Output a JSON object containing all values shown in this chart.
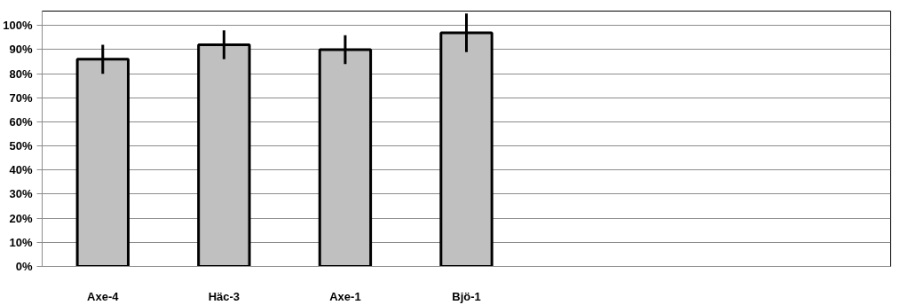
{
  "chart_data": {
    "type": "bar",
    "categories": [
      "Axe-4",
      "Häc-3",
      "Axe-1",
      "Bjö-1",
      null,
      null,
      null
    ],
    "values": [
      86,
      92,
      90,
      97,
      null,
      null,
      null
    ],
    "errors": [
      6,
      6,
      6,
      8,
      null,
      null,
      null
    ],
    "color": "#c0c0c0",
    "ylim": [
      0,
      106
    ],
    "yticks": [
      {
        "value": 0,
        "label": "0%"
      },
      {
        "value": 10,
        "label": "10%"
      },
      {
        "value": 20,
        "label": "20%"
      },
      {
        "value": 30,
        "label": "30%"
      },
      {
        "value": 40,
        "label": "40%"
      },
      {
        "value": 50,
        "label": "50%"
      },
      {
        "value": 60,
        "label": "60%"
      },
      {
        "value": 70,
        "label": "70%"
      },
      {
        "value": 80,
        "label": "80%"
      },
      {
        "value": 90,
        "label": "90%"
      },
      {
        "value": 100,
        "label": "100%"
      }
    ],
    "grid": "y"
  }
}
